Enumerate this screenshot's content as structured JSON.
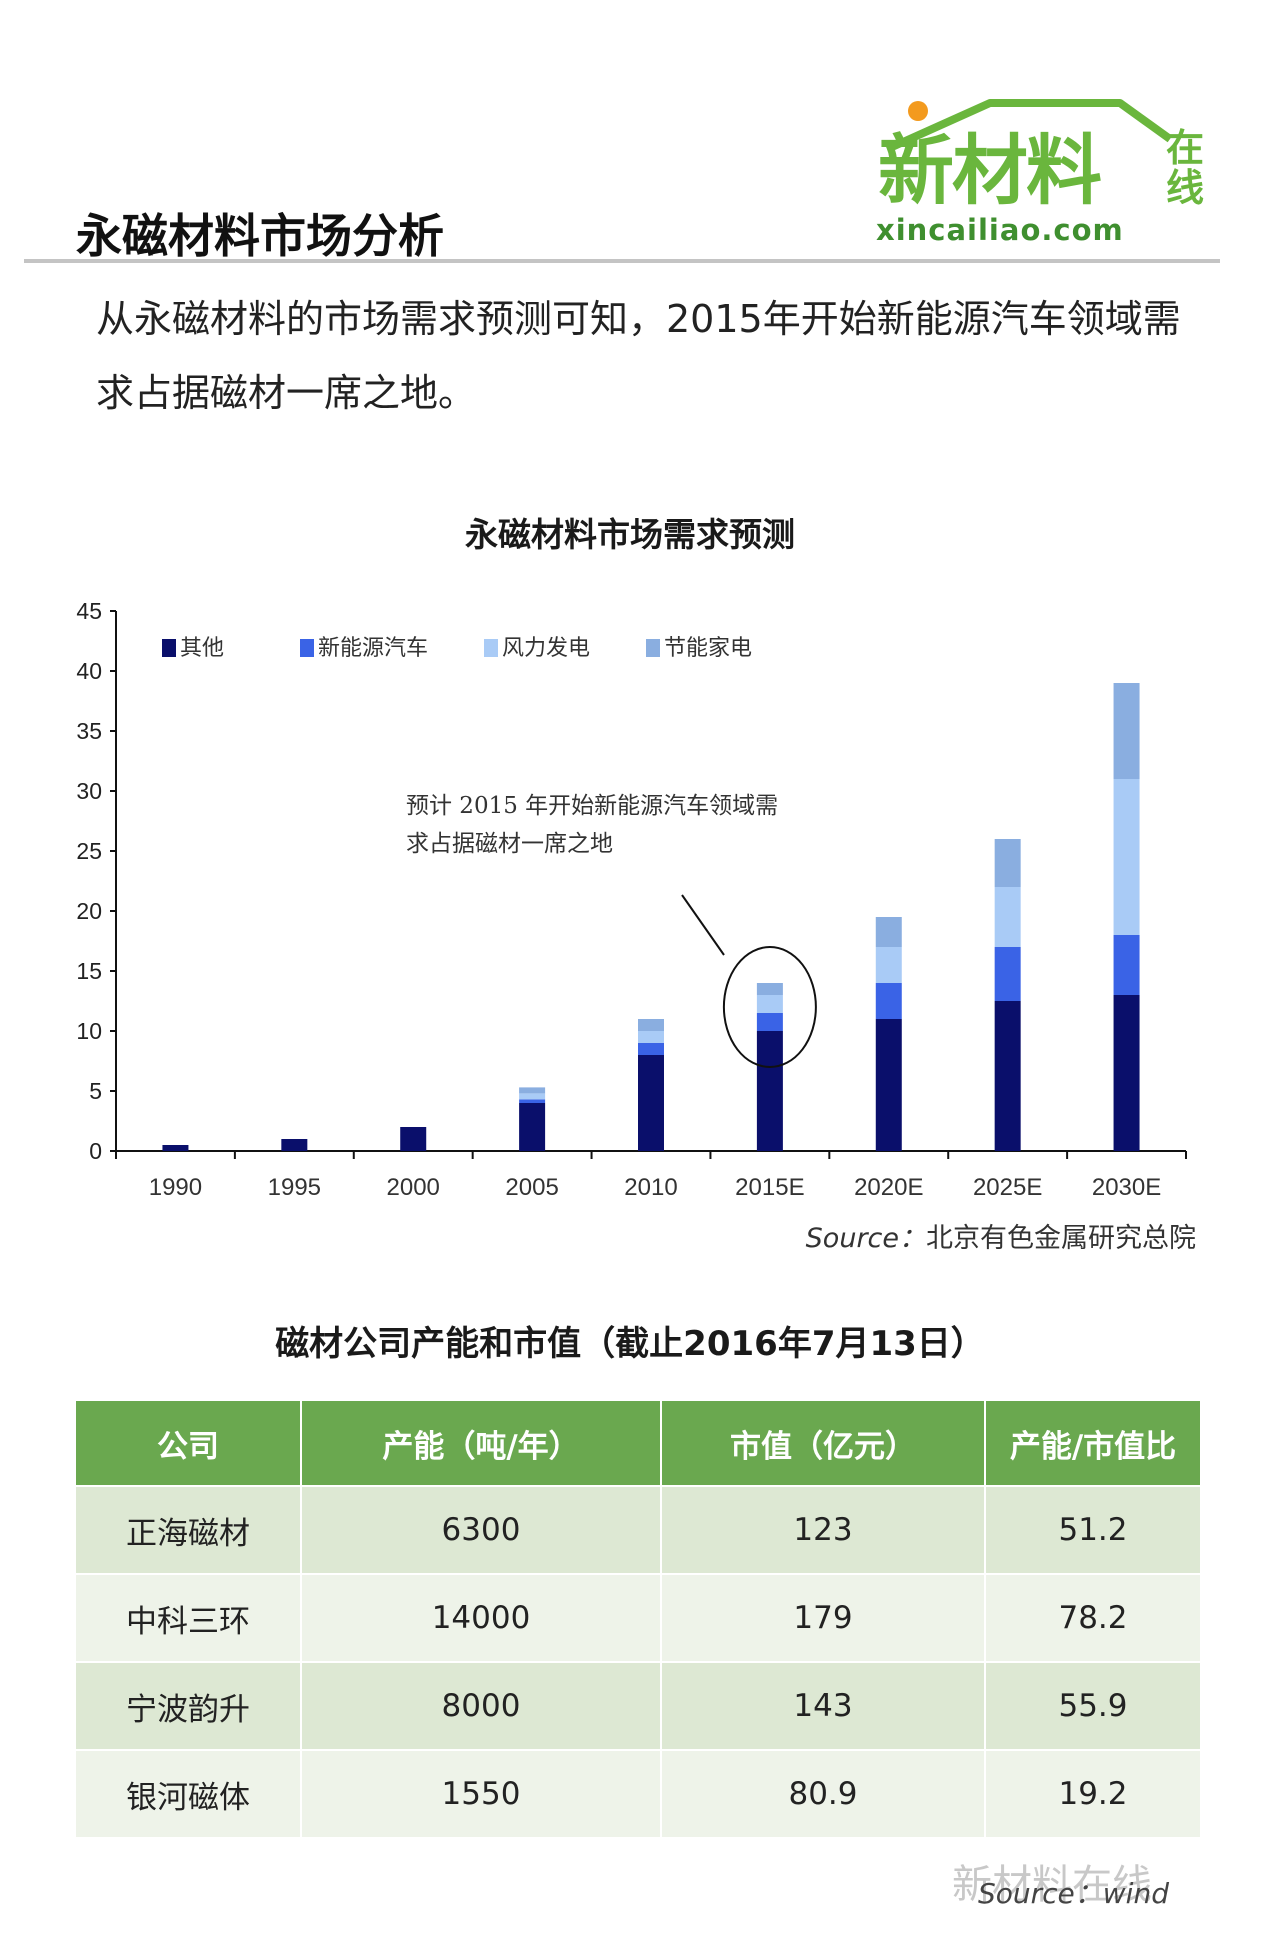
{
  "logo": {
    "main": "新材料",
    "side": "在线",
    "url": "xincailiao.com"
  },
  "page": {
    "title": "永磁材料市场分析",
    "intro": "从永磁材料的市场需求预测可知，2015年开始新能源汽车领域需求占据磁材一席之地。"
  },
  "chart_data": {
    "type": "bar",
    "stacked": true,
    "title": "永磁材料市场需求预测",
    "xlabel": "",
    "ylabel": "",
    "ylim": [
      0,
      45
    ],
    "yticks": [
      0,
      5,
      10,
      15,
      20,
      25,
      30,
      35,
      40,
      45
    ],
    "categories": [
      "1990",
      "1995",
      "2000",
      "2005",
      "2010",
      "2015E",
      "2020E",
      "2025E",
      "2030E"
    ],
    "series": [
      {
        "name": "其他",
        "color": "#0a0f6b",
        "values": [
          0.5,
          1,
          2,
          4,
          8,
          10,
          11,
          12.5,
          13
        ]
      },
      {
        "name": "新能源汽车",
        "color": "#3a63e6",
        "values": [
          0,
          0,
          0,
          0.3,
          1,
          1.5,
          3,
          4.5,
          5
        ]
      },
      {
        "name": "风力发电",
        "color": "#a9cbf6",
        "values": [
          0,
          0,
          0,
          0.5,
          1,
          1.5,
          3,
          5,
          13
        ]
      },
      {
        "name": "节能家电",
        "color": "#8aaee0",
        "values": [
          0,
          0,
          0,
          0.5,
          1,
          1,
          2.5,
          4,
          8
        ]
      }
    ],
    "legend": "top-left",
    "grid": false,
    "annotation": "预计 2015 年开始新能源汽车领域需求占据磁材一席之地",
    "annotation_line1": "预计 2015 年开始新能源汽车领域需",
    "annotation_line2": "求占据磁材一席之地",
    "highlight_category": "2015E"
  },
  "chart_source": {
    "label": "Source：",
    "text": "北京有色金属研究总院"
  },
  "table": {
    "title": "磁材公司产能和市值（截止2016年7月13日）",
    "headers": [
      "公司",
      "产能（吨/年）",
      "市值（亿元）",
      "产能/市值比"
    ],
    "rows": [
      [
        "正海磁材",
        "6300",
        "123",
        "51.2"
      ],
      [
        "中科三环",
        "14000",
        "179",
        "78.2"
      ],
      [
        "宁波韵升",
        "8000",
        "143",
        "55.9"
      ],
      [
        "银河磁体",
        "1550",
        "80.9",
        "19.2"
      ]
    ]
  },
  "footer": {
    "watermark": "新材料在线",
    "source": "Source：wind"
  }
}
